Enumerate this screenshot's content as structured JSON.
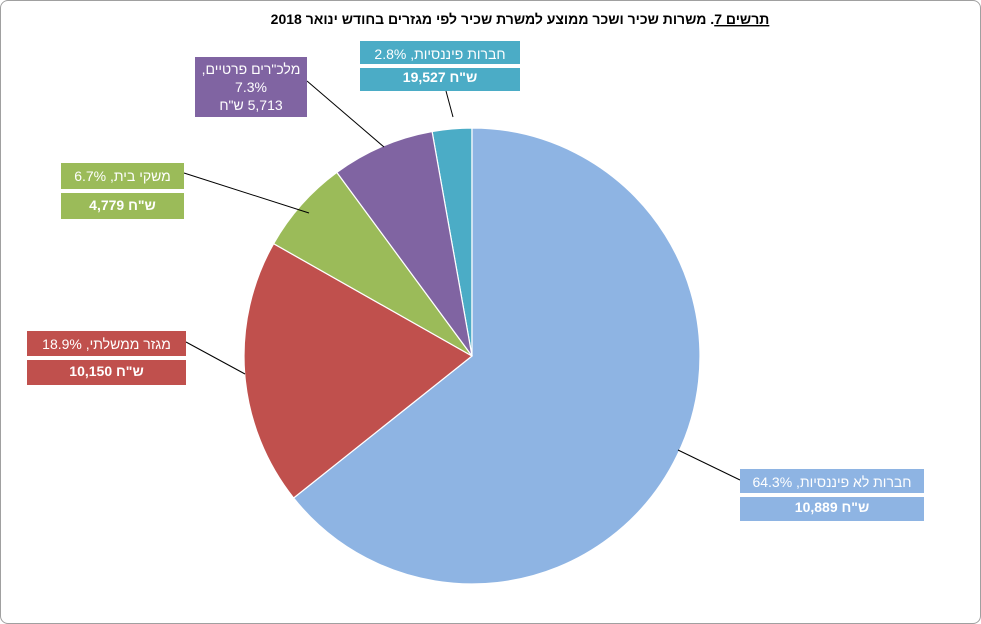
{
  "chart_data": {
    "type": "pie",
    "title": {
      "prefix": "תרשים 7",
      "text": ". משרות שכיר ושכר ממוצע למשרת שכיר לפי מגזרים בחודש ינואר 2018"
    },
    "slices": [
      {
        "name": "חברות פיננסיות",
        "percent": 2.8,
        "percent_label": "2.8%",
        "wage_label": "19,527",
        "currency": "ש\"ח",
        "color": "#4BACC6"
      },
      {
        "name": "חברות לא פיננסיות",
        "percent": 64.3,
        "percent_label": "64.3%",
        "wage_label": "10,889",
        "currency": "ש\"ח",
        "color": "#8EB4E3"
      },
      {
        "name": "מגזר ממשלתי",
        "percent": 18.9,
        "percent_label": "18.9%",
        "wage_label": "10,150",
        "currency": "ש\"ח",
        "color": "#C0504D"
      },
      {
        "name": "משקי בית",
        "percent": 6.7,
        "percent_label": "6.7%",
        "wage_label": "4,779",
        "currency": "ש\"ח",
        "color": "#9BBB59"
      },
      {
        "name": "מלכ\"רים פרטיים",
        "percent": 7.3,
        "percent_label": "7.3%",
        "wage_label": "5,713",
        "currency": "ש\"ח",
        "color": "#8064A2"
      }
    ]
  }
}
